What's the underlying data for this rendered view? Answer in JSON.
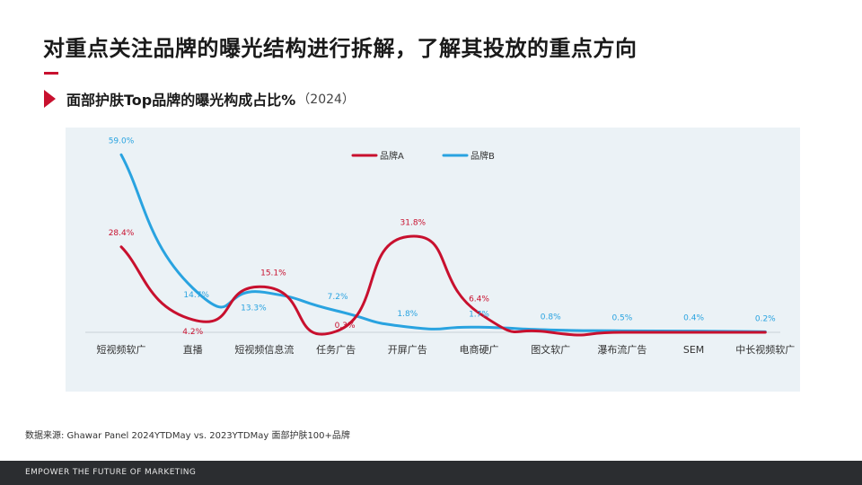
{
  "page": {
    "title": "对重点关注品牌的曝光结构进行拆解，了解其投放的重点方向",
    "subtitle": "面部护肤Top品牌的曝光构成占比%",
    "subtitle_year": "（2024）",
    "source": "数据来源: Ghawar Panel 2024YTDMay vs. 2023YTDMay 面部护肤100+品牌",
    "footer": "EMPOWER THE FUTURE OF MARKETING"
  },
  "chart_data": {
    "type": "line",
    "categories": [
      "短视频软广",
      "直播",
      "短视频信息流",
      "任务广告",
      "开屏广告",
      "电商硬广",
      "图文软广",
      "瀑布流广告",
      "SEM",
      "中长视频软广"
    ],
    "series": [
      {
        "name": "品牌A",
        "color": "#c8102e",
        "values": [
          28.4,
          4.2,
          15.1,
          0.3,
          31.8,
          6.4,
          null,
          null,
          null,
          null
        ],
        "labels": [
          "28.4%",
          "4.2%",
          "15.1%",
          "0.3%",
          "31.8%",
          "6.4%",
          "",
          "",
          "",
          ""
        ]
      },
      {
        "name": "品牌B",
        "color": "#29a3e0",
        "values": [
          59.0,
          14.7,
          13.3,
          7.2,
          1.8,
          1.7,
          0.8,
          0.5,
          0.4,
          0.2
        ],
        "labels": [
          "59.0%",
          "14.7%",
          "13.3%",
          "7.2%",
          "1.8%",
          "1.7%",
          "0.8%",
          "0.5%",
          "0.4%",
          "0.2%"
        ]
      }
    ],
    "legend_position": "top-center",
    "grid": false
  }
}
